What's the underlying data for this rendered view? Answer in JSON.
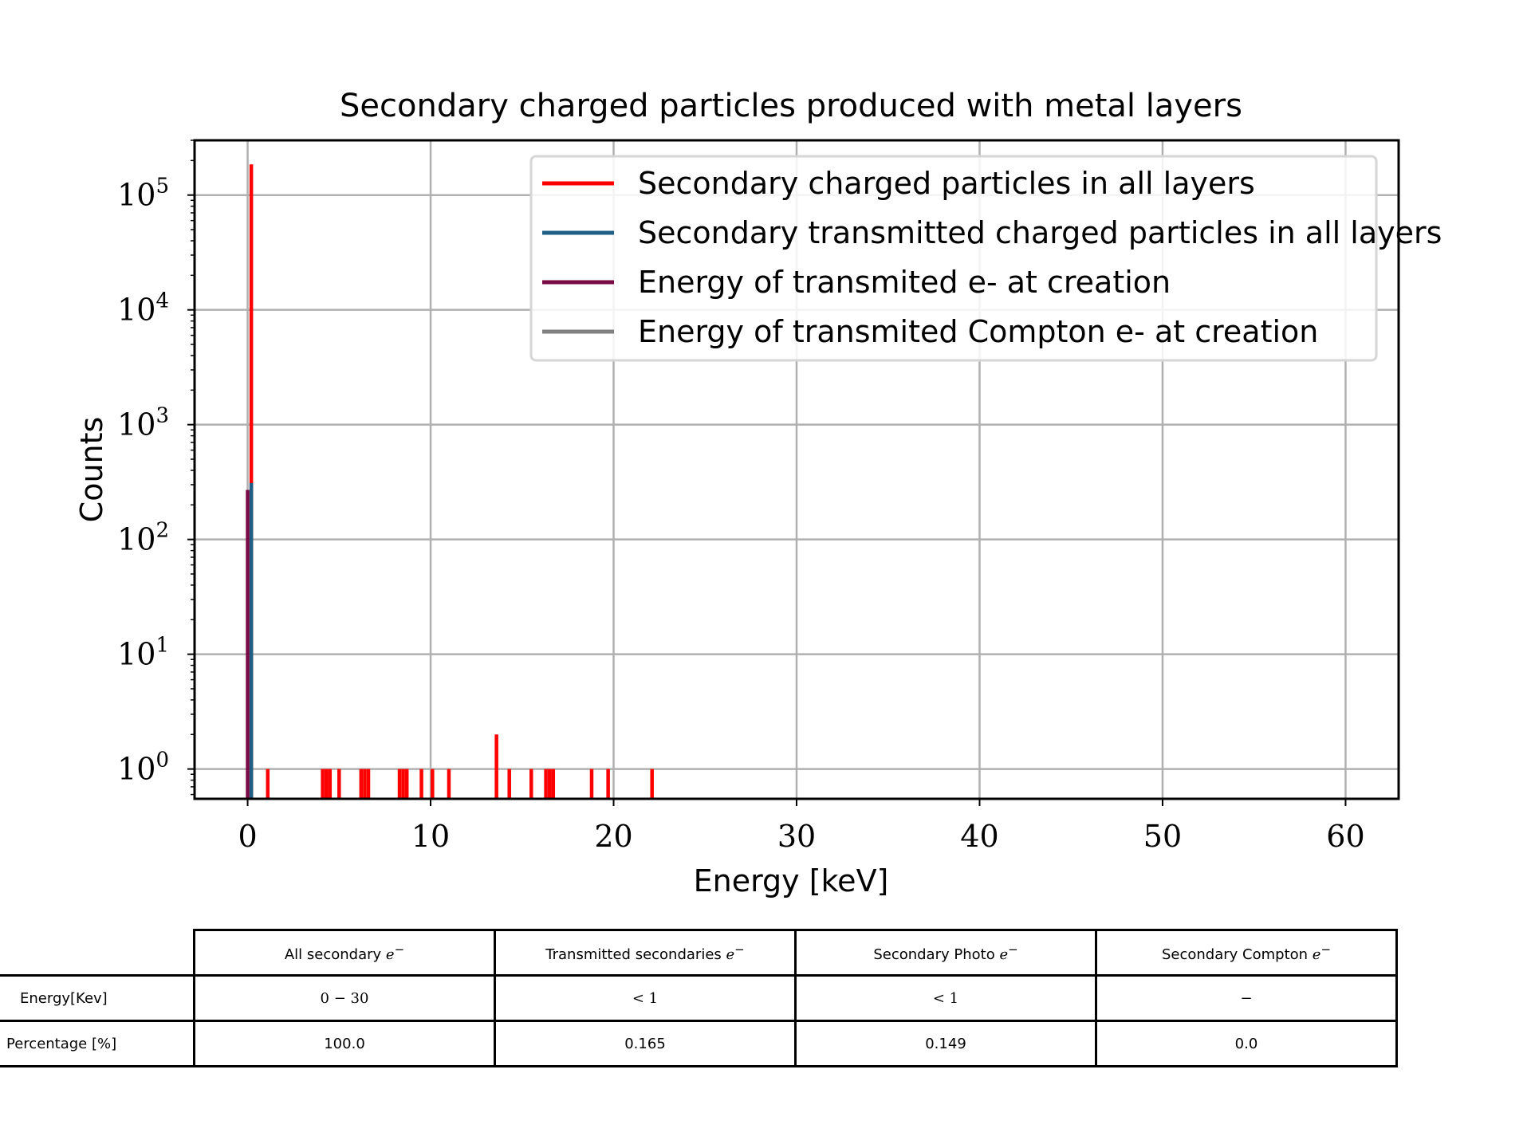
{
  "chart_data": {
    "type": "histogram",
    "title": "Secondary charged particles produced with metal layers",
    "xlabel": "Energy [keV]",
    "ylabel": "Counts",
    "xlim": [
      -2.9,
      62.9
    ],
    "ylim": [
      0.55,
      300000
    ],
    "yscale": "log",
    "grid": true,
    "legend_position": "top-right",
    "xticks": [
      0,
      10,
      20,
      30,
      40,
      50,
      60
    ],
    "xtick_labels": [
      "0",
      "10",
      "20",
      "30",
      "40",
      "50",
      "60"
    ],
    "ytick_labels": [
      {
        "base": "10",
        "exp": "0",
        "value": 1
      },
      {
        "base": "10",
        "exp": "1",
        "value": 10
      },
      {
        "base": "10",
        "exp": "2",
        "value": 100
      },
      {
        "base": "10",
        "exp": "3",
        "value": 1000
      },
      {
        "base": "10",
        "exp": "4",
        "value": 10000
      },
      {
        "base": "10",
        "exp": "5",
        "value": 100000
      }
    ],
    "series": [
      {
        "name": "Secondary charged particles in all layers",
        "color": "#ff0000",
        "bars": [
          {
            "x": 0.2,
            "y": 185000
          },
          {
            "x": 1.1,
            "y": 1
          },
          {
            "x": 4.1,
            "y": 1
          },
          {
            "x": 4.3,
            "y": 1
          },
          {
            "x": 4.5,
            "y": 1
          },
          {
            "x": 5.0,
            "y": 1
          },
          {
            "x": 6.2,
            "y": 1
          },
          {
            "x": 6.4,
            "y": 1
          },
          {
            "x": 6.6,
            "y": 1
          },
          {
            "x": 8.3,
            "y": 1
          },
          {
            "x": 8.5,
            "y": 1
          },
          {
            "x": 8.7,
            "y": 1
          },
          {
            "x": 9.5,
            "y": 1
          },
          {
            "x": 10.1,
            "y": 1
          },
          {
            "x": 11.0,
            "y": 1
          },
          {
            "x": 13.6,
            "y": 2
          },
          {
            "x": 14.3,
            "y": 1
          },
          {
            "x": 15.5,
            "y": 1
          },
          {
            "x": 16.3,
            "y": 1
          },
          {
            "x": 16.5,
            "y": 1
          },
          {
            "x": 16.7,
            "y": 1
          },
          {
            "x": 18.8,
            "y": 1
          },
          {
            "x": 19.7,
            "y": 1
          },
          {
            "x": 22.1,
            "y": 1
          }
        ]
      },
      {
        "name": "Secondary transmitted charged particles in all layers",
        "color": "#1f5f86",
        "bars": [
          {
            "x": 0.2,
            "y": 310
          }
        ]
      },
      {
        "name": "Energy of transmited e- at creation",
        "color": "#7a0a45",
        "bars": [
          {
            "x": 0.0,
            "y": 270
          }
        ]
      },
      {
        "name": "Energy of transmited Compton e- at creation",
        "color": "#808080",
        "bars": []
      }
    ]
  },
  "table": {
    "columns": [
      {
        "label": "All secondary ",
        "sym": "e",
        "sup": "−"
      },
      {
        "label": "Transmitted secondaries ",
        "sym": "e",
        "sup": "−"
      },
      {
        "label": "Secondary Photo ",
        "sym": "e",
        "sup": "−"
      },
      {
        "label": "Secondary Compton ",
        "sym": "e",
        "sup": "−"
      }
    ],
    "rows": [
      {
        "label": "Energy[Kev]",
        "cells": [
          "0 − 30",
          "< 1",
          "< 1",
          "−"
        ]
      },
      {
        "label": "Percentage [%]",
        "cells": [
          "100.0",
          "0.165",
          "0.149",
          "0.0"
        ]
      }
    ]
  }
}
